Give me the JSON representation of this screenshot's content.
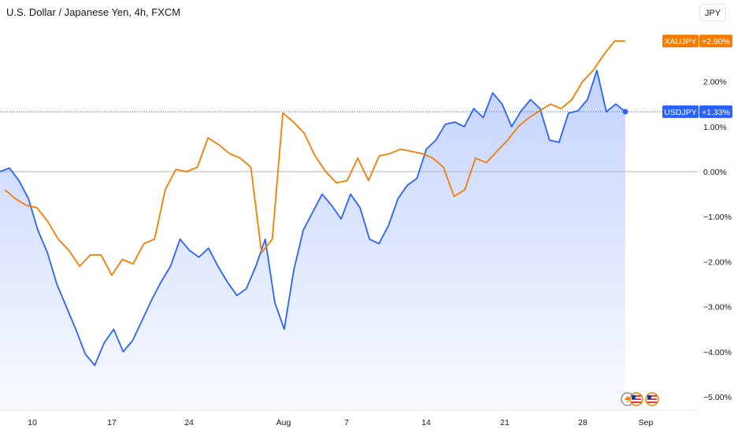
{
  "header": {
    "title": "U.S. Dollar / Japanese Yen, 4h, FXCM",
    "currency_button": "JPY"
  },
  "colors": {
    "usdjpy": "#2962ff",
    "xaujpy": "#f57c00",
    "area_fill": "#2962ff"
  },
  "icons": [
    "lightning-flag-icon",
    "us-flag-event-icon",
    "us-flag-event-icon"
  ],
  "chart_data": {
    "type": "line",
    "title": "U.S. Dollar / Japanese Yen, 4h, FXCM",
    "xlabel": "",
    "ylabel": "",
    "y_unit": "%",
    "ylim": [
      -5.15,
      3.0
    ],
    "y_ticks": [
      2.0,
      1.0,
      0.0,
      -1.0,
      -2.0,
      -3.0,
      -4.0,
      -5.0
    ],
    "y_tick_labels": [
      "2.00%",
      "1.00%",
      "0.00%",
      "−1.00%",
      "−2.00%",
      "−3.00%",
      "−4.00%",
      "−5.00%"
    ],
    "x_ticks": [
      "10",
      "17",
      "24",
      "Aug",
      "7",
      "14",
      "21",
      "28",
      "Sep"
    ],
    "grid": false,
    "baseline": 0.0,
    "series": [
      {
        "name": "USDJPY",
        "last_label": "+1.33%",
        "area": true,
        "values": [
          0.0,
          0.08,
          -0.2,
          -0.6,
          -1.3,
          -1.8,
          -2.5,
          -3.0,
          -3.5,
          -4.05,
          -4.3,
          -3.8,
          -3.5,
          -4.0,
          -3.75,
          -3.3,
          -2.85,
          -2.45,
          -2.1,
          -1.5,
          -1.75,
          -1.9,
          -1.7,
          -2.1,
          -2.45,
          -2.75,
          -2.6,
          -2.1,
          -1.5,
          -2.9,
          -3.5,
          -2.2,
          -1.3,
          -0.9,
          -0.5,
          -0.75,
          -1.05,
          -0.5,
          -0.8,
          -1.5,
          -1.6,
          -1.2,
          -0.6,
          -0.3,
          -0.15,
          0.5,
          0.7,
          1.05,
          1.1,
          1.0,
          1.4,
          1.2,
          1.75,
          1.5,
          1.0,
          1.35,
          1.6,
          1.4,
          0.7,
          0.65,
          1.3,
          1.35,
          1.6,
          2.25,
          1.33,
          1.5,
          1.33
        ]
      },
      {
        "name": "XAUJPY",
        "last_label": "+2.90%",
        "area": false,
        "values": [
          -0.4,
          -0.6,
          -0.75,
          -0.8,
          -1.1,
          -1.5,
          -1.75,
          -2.1,
          -1.85,
          -1.85,
          -2.3,
          -1.95,
          -2.05,
          -1.6,
          -1.5,
          -0.4,
          0.05,
          0.0,
          0.1,
          0.75,
          0.6,
          0.4,
          0.3,
          0.1,
          -1.8,
          -1.5,
          1.3,
          1.1,
          0.85,
          0.35,
          0.0,
          -0.25,
          -0.2,
          0.3,
          -0.2,
          0.35,
          0.4,
          0.5,
          0.45,
          0.4,
          0.3,
          0.1,
          -0.55,
          -0.4,
          0.3,
          0.2,
          0.45,
          0.7,
          1.0,
          1.2,
          1.35,
          1.5,
          1.4,
          1.6,
          2.0,
          2.25,
          2.6,
          2.9,
          2.9
        ]
      }
    ]
  }
}
